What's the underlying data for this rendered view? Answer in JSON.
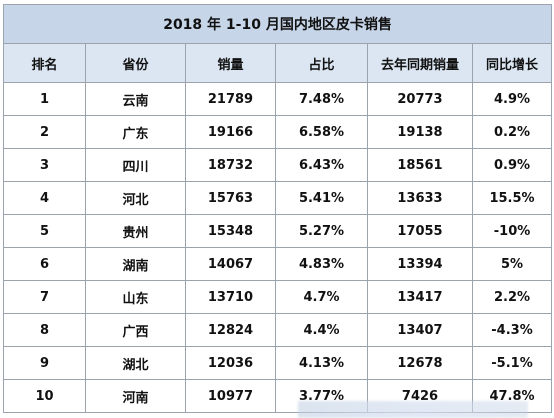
{
  "title": "2018 年 1-10 月国内地区皮卡销售",
  "headers": [
    "排名",
    "省份",
    "销量",
    "占比",
    "去年同期销量",
    "同比增长"
  ],
  "rows": [
    [
      "1",
      "云南",
      "21789",
      "7.48%",
      "20773",
      "4.9%"
    ],
    [
      "2",
      "广东",
      "19166",
      "6.58%",
      "19138",
      "0.2%"
    ],
    [
      "3",
      "四川",
      "18732",
      "6.43%",
      "18561",
      "0.9%"
    ],
    [
      "4",
      "河北",
      "15763",
      "5.41%",
      "13633",
      "15.5%"
    ],
    [
      "5",
      "贵州",
      "15348",
      "5.27%",
      "17055",
      "-10%"
    ],
    [
      "6",
      "湖南",
      "14067",
      "4.83%",
      "13394",
      "5%"
    ],
    [
      "7",
      "山东",
      "13710",
      "4.7%",
      "13417",
      "2.2%"
    ],
    [
      "8",
      "广西",
      "12824",
      "4.4%",
      "13407",
      "-4.3%"
    ],
    [
      "9",
      "湖北",
      "12036",
      "4.13%",
      "12678",
      "-5.1%"
    ],
    [
      "10",
      "河南",
      "10977",
      "3.77%",
      "7426",
      "47.8%"
    ]
  ],
  "colors": {
    "title_bg": "#c6d5e8",
    "header_bg": "#dbe6f2",
    "border": "#9ba3ad"
  }
}
